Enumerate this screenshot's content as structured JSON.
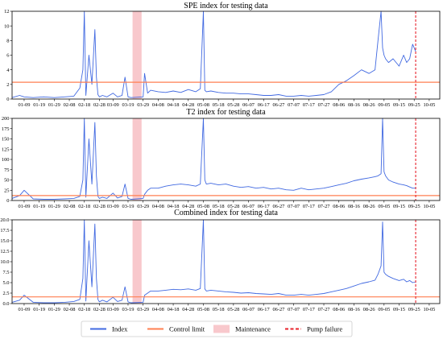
{
  "legend": [
    {
      "key": "index",
      "label": "Index",
      "type": "line",
      "color": "#4169e1"
    },
    {
      "key": "control_limit",
      "label": "Control limit",
      "type": "line",
      "color": "#ff7f50"
    },
    {
      "key": "maintenance",
      "label": "Maintenance",
      "type": "patch",
      "color": "#f8c8cc"
    },
    {
      "key": "pump_failure",
      "label": "Pump failure",
      "type": "dashed",
      "color": "#e8202a"
    }
  ],
  "chart_data": [
    {
      "type": "line",
      "title": "SPE index for testing data",
      "xlabel": "",
      "ylabel": "",
      "x_ticks": [
        "01-09",
        "01-19",
        "01-29",
        "02-08",
        "02-18",
        "02-28",
        "03-09",
        "03-19",
        "03-29",
        "04-08",
        "04-18",
        "04-28",
        "05-08",
        "05-18",
        "05-28",
        "06-07",
        "06-17",
        "06-27",
        "07-07",
        "07-17",
        "07-27",
        "08-06",
        "08-16",
        "08-26",
        "09-05",
        "09-15",
        "09-25",
        "10-05"
      ],
      "y_ticks": [
        0,
        2,
        4,
        6,
        8,
        10,
        12
      ],
      "ylim": [
        0,
        12
      ],
      "control_limit": 2.3,
      "maintenance": [
        "03-22",
        "03-28"
      ],
      "pump_failure": "09-26",
      "series": [
        {
          "name": "Index",
          "x": [
            "01-01",
            "01-06",
            "01-09",
            "01-15",
            "01-22",
            "01-29",
            "02-05",
            "02-11",
            "02-15",
            "02-17",
            "02-18",
            "02-19",
            "02-21",
            "02-23",
            "02-25",
            "02-26",
            "02-27",
            "02-28",
            "03-02",
            "03-05",
            "03-09",
            "03-12",
            "03-15",
            "03-17",
            "03-19",
            "03-21",
            "03-29",
            "03-30",
            "04-01",
            "04-03",
            "04-08",
            "04-13",
            "04-18",
            "04-23",
            "04-28",
            "05-03",
            "05-06",
            "05-08",
            "05-09",
            "05-10",
            "05-13",
            "05-18",
            "05-23",
            "05-28",
            "06-02",
            "06-07",
            "06-12",
            "06-17",
            "06-22",
            "06-27",
            "07-02",
            "07-07",
            "07-12",
            "07-17",
            "07-22",
            "07-27",
            "08-01",
            "08-06",
            "08-11",
            "08-16",
            "08-21",
            "08-26",
            "08-30",
            "09-01",
            "09-03",
            "09-04",
            "09-05",
            "09-06",
            "09-08",
            "09-11",
            "09-15",
            "09-18",
            "09-20",
            "09-22",
            "09-24",
            "09-26"
          ],
          "values": [
            0.2,
            0.5,
            0.3,
            0.2,
            0.3,
            0.2,
            0.3,
            0.4,
            1.5,
            4.0,
            12.0,
            0.5,
            6.0,
            2.0,
            9.5,
            3.0,
            0.6,
            0.3,
            0.5,
            0.3,
            0.8,
            0.3,
            0.5,
            3.0,
            0.3,
            0.2,
            0.3,
            3.5,
            0.8,
            1.2,
            1.0,
            0.9,
            1.1,
            0.9,
            1.3,
            1.0,
            1.4,
            12.0,
            1.2,
            1.0,
            1.1,
            0.9,
            0.8,
            0.8,
            0.7,
            0.7,
            0.6,
            0.5,
            0.5,
            0.6,
            0.4,
            0.4,
            0.5,
            0.4,
            0.5,
            0.6,
            1.0,
            2.0,
            2.5,
            3.2,
            4.0,
            3.5,
            4.0,
            8.0,
            12.0,
            7.0,
            6.0,
            5.5,
            5.0,
            5.5,
            4.5,
            6.0,
            5.0,
            5.5,
            7.5,
            6.5
          ]
        }
      ]
    },
    {
      "type": "line",
      "title": "T2 index for testing data",
      "xlabel": "",
      "ylabel": "",
      "x_ticks": [
        "01-09",
        "01-19",
        "01-29",
        "02-08",
        "02-18",
        "02-28",
        "03-09",
        "03-19",
        "03-29",
        "04-08",
        "04-18",
        "04-28",
        "05-08",
        "05-18",
        "05-28",
        "06-07",
        "06-17",
        "06-27",
        "07-07",
        "07-17",
        "07-27",
        "08-06",
        "08-16",
        "08-26",
        "09-05",
        "09-15",
        "09-25",
        "10-05"
      ],
      "y_ticks": [
        0,
        25,
        50,
        75,
        100,
        125,
        150,
        175,
        200
      ],
      "ylim": [
        0,
        200
      ],
      "control_limit": 12,
      "maintenance": [
        "03-22",
        "03-28"
      ],
      "pump_failure": "09-26",
      "series": [
        {
          "name": "Index",
          "x": [
            "01-01",
            "01-06",
            "01-09",
            "01-15",
            "01-22",
            "01-29",
            "02-05",
            "02-11",
            "02-15",
            "02-17",
            "02-18",
            "02-19",
            "02-21",
            "02-23",
            "02-25",
            "02-26",
            "02-27",
            "02-28",
            "03-02",
            "03-05",
            "03-09",
            "03-12",
            "03-15",
            "03-17",
            "03-19",
            "03-21",
            "03-29",
            "03-30",
            "04-01",
            "04-03",
            "04-08",
            "04-13",
            "04-18",
            "04-23",
            "04-28",
            "05-03",
            "05-06",
            "05-08",
            "05-09",
            "05-10",
            "05-13",
            "05-18",
            "05-23",
            "05-28",
            "06-02",
            "06-07",
            "06-12",
            "06-17",
            "06-22",
            "06-27",
            "07-02",
            "07-07",
            "07-12",
            "07-17",
            "07-22",
            "07-27",
            "08-01",
            "08-06",
            "08-11",
            "08-16",
            "08-21",
            "08-26",
            "08-30",
            "09-01",
            "09-03",
            "09-04",
            "09-05",
            "09-06",
            "09-08",
            "09-11",
            "09-15",
            "09-18",
            "09-20",
            "09-22",
            "09-24",
            "09-26"
          ],
          "values": [
            5,
            12,
            25,
            4,
            3,
            3,
            4,
            5,
            10,
            50,
            200,
            8,
            150,
            40,
            190,
            60,
            10,
            5,
            8,
            5,
            18,
            6,
            10,
            40,
            5,
            3,
            5,
            15,
            25,
            30,
            30,
            35,
            38,
            40,
            38,
            35,
            40,
            200,
            50,
            40,
            42,
            38,
            40,
            35,
            32,
            34,
            30,
            32,
            28,
            30,
            26,
            25,
            30,
            26,
            28,
            30,
            34,
            38,
            42,
            48,
            52,
            55,
            58,
            60,
            65,
            200,
            70,
            60,
            50,
            45,
            40,
            38,
            36,
            33,
            30,
            30
          ]
        }
      ]
    },
    {
      "type": "line",
      "title": "Combined index for testing data",
      "xlabel": "",
      "ylabel": "",
      "x_ticks": [
        "01-09",
        "01-19",
        "01-29",
        "02-08",
        "02-18",
        "02-28",
        "03-09",
        "03-19",
        "03-29",
        "04-08",
        "04-18",
        "04-28",
        "05-08",
        "05-18",
        "05-28",
        "06-07",
        "06-17",
        "06-27",
        "07-07",
        "07-17",
        "07-27",
        "08-06",
        "08-16",
        "08-26",
        "09-05",
        "09-15",
        "09-25",
        "10-05"
      ],
      "y_ticks": [
        0.0,
        2.5,
        5.0,
        7.5,
        10.0,
        12.5,
        15.0,
        17.5,
        20.0
      ],
      "ylim": [
        0,
        20
      ],
      "control_limit": 1.6,
      "maintenance": [
        "03-22",
        "03-28"
      ],
      "pump_failure": "09-26",
      "series": [
        {
          "name": "Index",
          "x": [
            "01-01",
            "01-06",
            "01-09",
            "01-15",
            "01-22",
            "01-29",
            "02-05",
            "02-11",
            "02-15",
            "02-17",
            "02-18",
            "02-19",
            "02-21",
            "02-23",
            "02-25",
            "02-26",
            "02-27",
            "02-28",
            "03-02",
            "03-05",
            "03-09",
            "03-12",
            "03-15",
            "03-17",
            "03-19",
            "03-21",
            "03-29",
            "03-30",
            "04-01",
            "04-03",
            "04-08",
            "04-13",
            "04-18",
            "04-23",
            "04-28",
            "05-03",
            "05-06",
            "05-08",
            "05-09",
            "05-10",
            "05-13",
            "05-18",
            "05-23",
            "05-28",
            "06-02",
            "06-07",
            "06-12",
            "06-17",
            "06-22",
            "06-27",
            "07-02",
            "07-07",
            "07-12",
            "07-17",
            "07-22",
            "07-27",
            "08-01",
            "08-06",
            "08-11",
            "08-16",
            "08-21",
            "08-26",
            "08-30",
            "09-01",
            "09-03",
            "09-04",
            "09-05",
            "09-06",
            "09-08",
            "09-11",
            "09-15",
            "09-18",
            "09-20",
            "09-22",
            "09-24",
            "09-26"
          ],
          "values": [
            0.3,
            0.8,
            2.0,
            0.3,
            0.2,
            0.2,
            0.3,
            0.5,
            1.0,
            6.0,
            20.0,
            0.6,
            15.0,
            4.0,
            19.0,
            6.0,
            1.0,
            0.4,
            0.8,
            0.4,
            1.5,
            0.5,
            0.8,
            4.0,
            0.4,
            0.2,
            0.3,
            2.0,
            2.5,
            3.0,
            3.0,
            3.2,
            3.4,
            3.3,
            3.5,
            3.2,
            3.6,
            20.0,
            3.5,
            3.0,
            3.2,
            3.0,
            2.8,
            2.7,
            2.5,
            2.6,
            2.4,
            2.3,
            2.2,
            2.4,
            2.0,
            2.0,
            2.2,
            2.0,
            2.2,
            2.4,
            2.8,
            3.2,
            3.6,
            4.2,
            4.8,
            5.2,
            5.6,
            7.0,
            9.0,
            19.5,
            7.5,
            7.0,
            6.5,
            6.0,
            5.5,
            5.8,
            5.2,
            5.5,
            5.0,
            5.2
          ]
        }
      ]
    }
  ]
}
